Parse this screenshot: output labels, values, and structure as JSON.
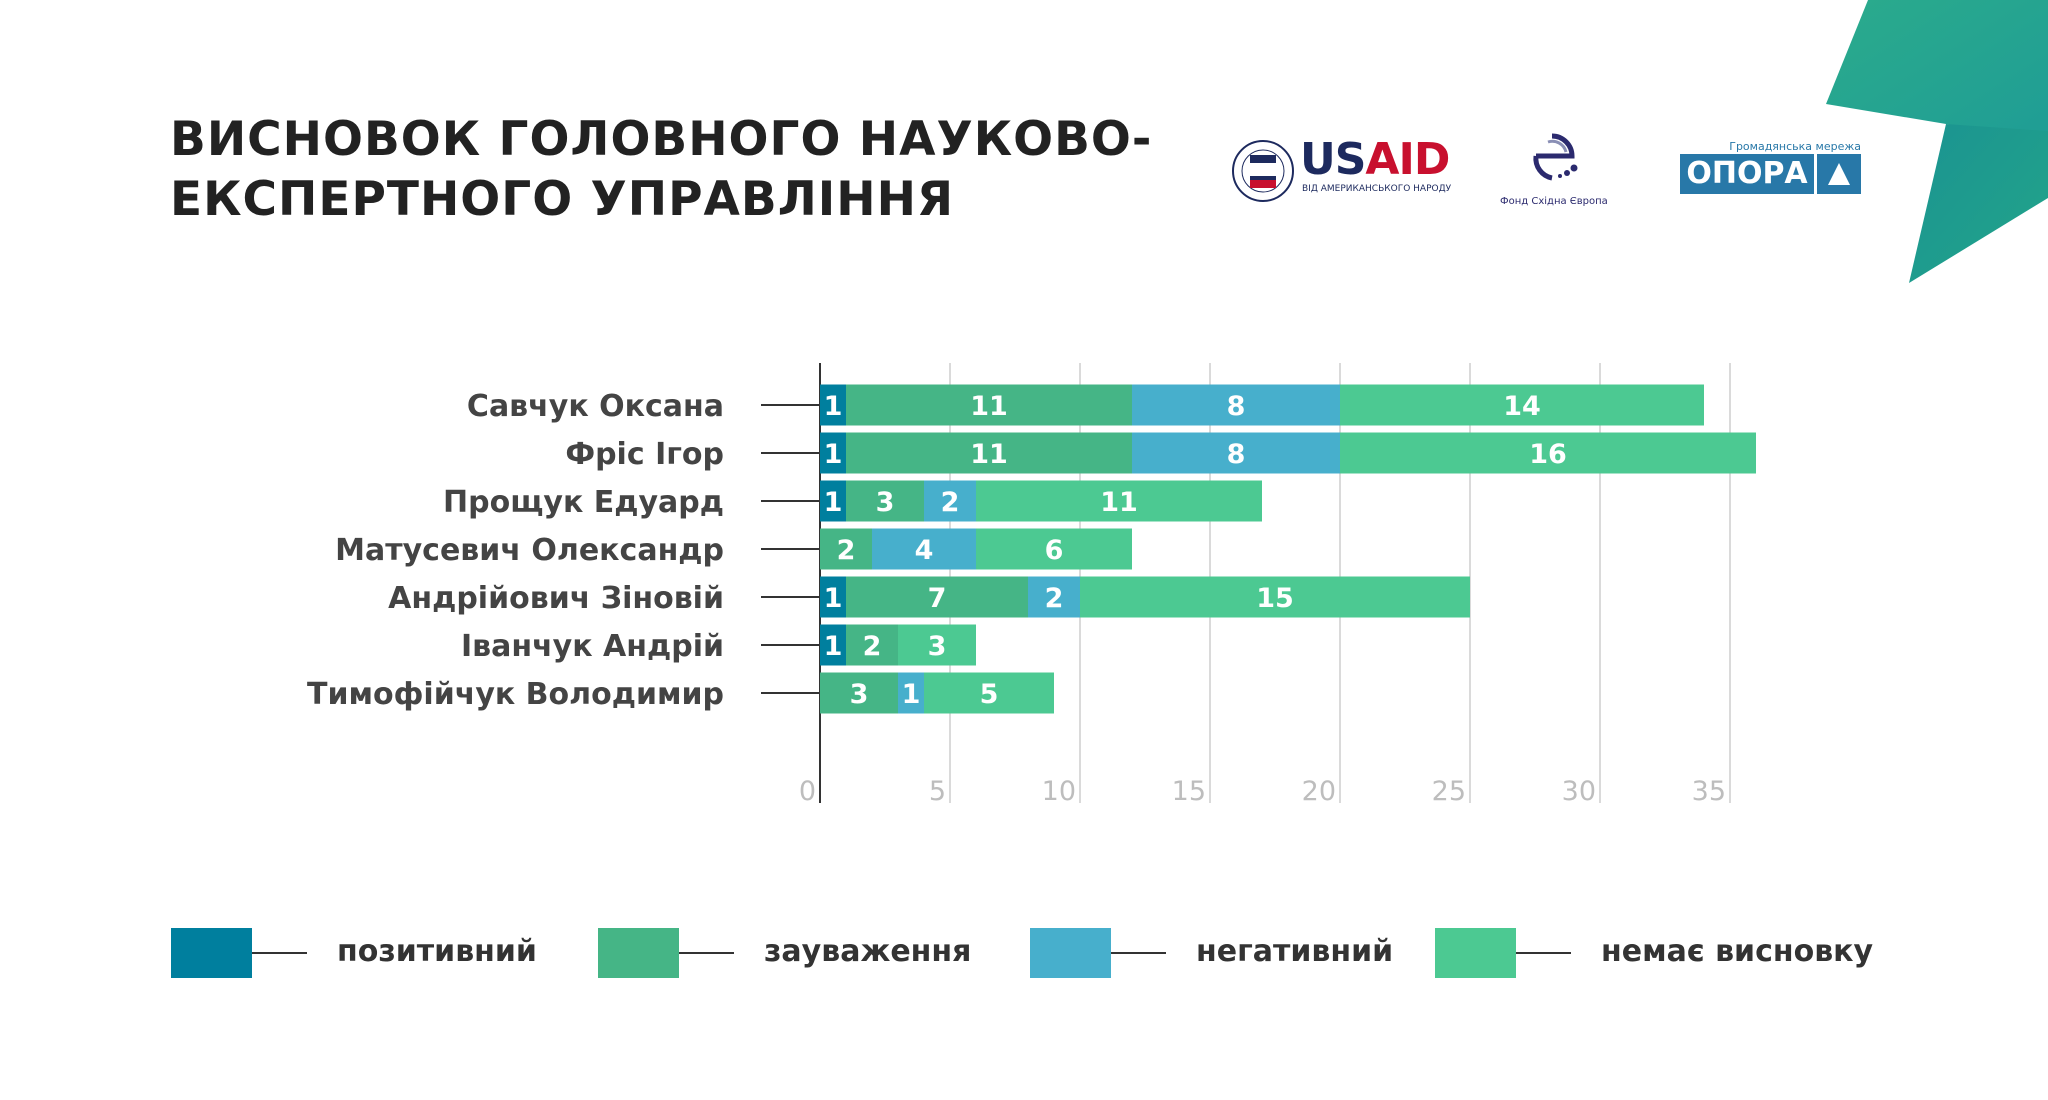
{
  "title": {
    "line1": "ВИСНОВОК ГОЛОВНОГО НАУКОВО-",
    "line2": "ЕКСПЕРТНОГО УПРАВЛІННЯ"
  },
  "logos": {
    "usaid": {
      "name": "USAID",
      "tagline": "ВІД АМЕРИКАНСЬКОГО НАРОДУ",
      "seal": "USAID"
    },
    "east_europe": {
      "name": "Фонд Східна Європа"
    },
    "opora": {
      "name": "ОПОРА",
      "tagline": "Громадянська мережа"
    }
  },
  "colors": {
    "positive": "#007f9e",
    "remarks": "#45b586",
    "negative": "#47afcc",
    "none": "#4cc992",
    "accent_dark": "#1a9a8f",
    "accent_light": "#2bab8c"
  },
  "chart_data": {
    "type": "bar",
    "orientation": "horizontal",
    "stacked": true,
    "categories": [
      "Савчук Оксана",
      "Фріс Ігор",
      "Прощук Едуард",
      "Матусевич Олександр",
      "Андрійович Зіновій",
      "Іванчук Андрій",
      "Тимофійчук Володимир"
    ],
    "series": [
      {
        "name": "позитивний",
        "color": "#007f9e",
        "values": [
          1,
          1,
          1,
          0,
          1,
          1,
          0
        ]
      },
      {
        "name": "зауваження",
        "color": "#45b586",
        "values": [
          11,
          11,
          3,
          2,
          7,
          2,
          3
        ]
      },
      {
        "name": "негативний",
        "color": "#47afcc",
        "values": [
          8,
          8,
          2,
          4,
          2,
          0,
          1
        ]
      },
      {
        "name": "немає висновку",
        "color": "#4cc992",
        "values": [
          14,
          16,
          11,
          6,
          15,
          3,
          5
        ]
      }
    ],
    "xlim": [
      0,
      35
    ],
    "xticks": [
      "0",
      "5",
      "10",
      "15",
      "20",
      "25",
      "30",
      "35"
    ],
    "grid": true,
    "legend_position": "bottom",
    "data_labels": true
  }
}
